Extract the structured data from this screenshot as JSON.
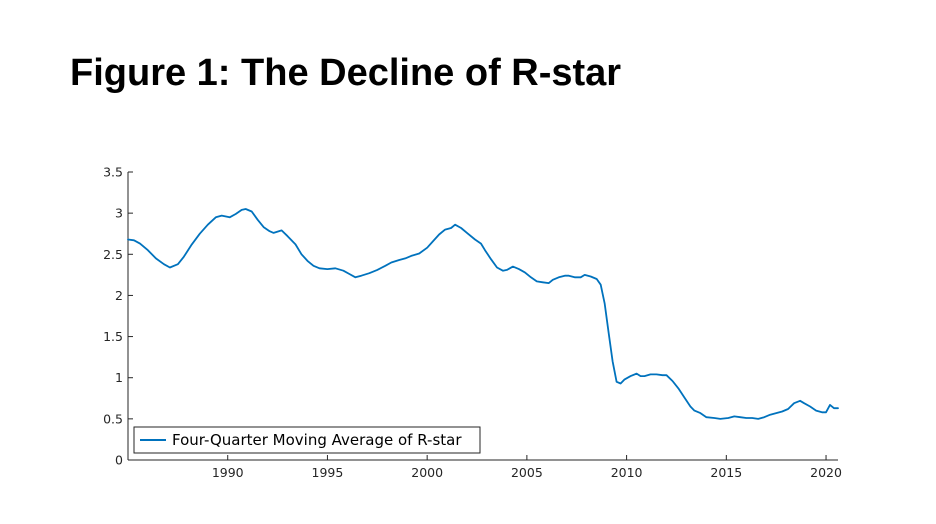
{
  "slide": {
    "title": "Figure 1: The Decline of R-star"
  },
  "colors": {
    "series": "#0072BD",
    "axis": "#262626",
    "background": "#ffffff"
  },
  "chart_data": {
    "type": "line",
    "title": "",
    "xlabel": "",
    "ylabel": "",
    "xlim": [
      1985,
      2020.6
    ],
    "ylim": [
      0,
      3.5
    ],
    "grid": false,
    "legend_position": "bottom-left",
    "x_ticks": [
      1990,
      1995,
      2000,
      2005,
      2010,
      2015,
      2020
    ],
    "x_tick_labels": [
      "1990",
      "1995",
      "2000",
      "2005",
      "2010",
      "2015",
      "2020"
    ],
    "y_ticks": [
      0,
      0.5,
      1,
      1.5,
      2,
      2.5,
      3,
      3.5
    ],
    "y_tick_labels": [
      "0",
      "0.5",
      "1",
      "1.5",
      "2",
      "2.5",
      "3",
      "3.5"
    ],
    "series": [
      {
        "name": "Four-Quarter Moving Average of R-star",
        "color": "#0072BD",
        "x": [
          1985.0,
          1985.3,
          1985.6,
          1986.0,
          1986.4,
          1986.8,
          1987.1,
          1987.5,
          1987.8,
          1988.2,
          1988.6,
          1989.0,
          1989.4,
          1989.7,
          1990.1,
          1990.4,
          1990.7,
          1990.9,
          1991.2,
          1991.5,
          1991.8,
          1992.1,
          1992.3,
          1992.7,
          1993.0,
          1993.4,
          1993.7,
          1994.0,
          1994.3,
          1994.6,
          1995.0,
          1995.4,
          1995.8,
          1996.1,
          1996.4,
          1996.7,
          1997.1,
          1997.5,
          1997.9,
          1998.2,
          1998.6,
          1998.9,
          1999.2,
          1999.6,
          2000.0,
          2000.3,
          2000.6,
          2000.9,
          2001.2,
          2001.4,
          2001.7,
          2002.0,
          2002.4,
          2002.7,
          2002.9,
          2003.2,
          2003.5,
          2003.8,
          2004.0,
          2004.3,
          2004.6,
          2004.9,
          2005.2,
          2005.5,
          2005.8,
          2006.1,
          2006.3,
          2006.6,
          2006.9,
          2007.1,
          2007.4,
          2007.7,
          2007.9,
          2008.2,
          2008.5,
          2008.7,
          2008.9,
          2009.1,
          2009.3,
          2009.5,
          2009.7,
          2009.9,
          2010.2,
          2010.5,
          2010.7,
          2010.9,
          2011.2,
          2011.5,
          2011.8,
          2012.0,
          2012.3,
          2012.6,
          2012.9,
          2013.2,
          2013.4,
          2013.7,
          2014.0,
          2014.4,
          2014.7,
          2015.1,
          2015.4,
          2015.7,
          2016.0,
          2016.3,
          2016.6,
          2016.9,
          2017.2,
          2017.5,
          2017.8,
          2018.1,
          2018.4,
          2018.7,
          2018.9,
          2019.2,
          2019.5,
          2019.8,
          2020.0,
          2020.2,
          2020.4,
          2020.6
        ],
        "y": [
          2.68,
          2.67,
          2.63,
          2.55,
          2.45,
          2.38,
          2.34,
          2.38,
          2.47,
          2.62,
          2.75,
          2.86,
          2.95,
          2.97,
          2.95,
          2.99,
          3.04,
          3.05,
          3.02,
          2.92,
          2.83,
          2.78,
          2.76,
          2.79,
          2.72,
          2.62,
          2.5,
          2.42,
          2.36,
          2.33,
          2.32,
          2.33,
          2.3,
          2.26,
          2.22,
          2.24,
          2.27,
          2.31,
          2.36,
          2.4,
          2.43,
          2.45,
          2.48,
          2.51,
          2.58,
          2.66,
          2.74,
          2.8,
          2.82,
          2.86,
          2.82,
          2.76,
          2.68,
          2.63,
          2.55,
          2.44,
          2.34,
          2.3,
          2.31,
          2.35,
          2.32,
          2.28,
          2.22,
          2.17,
          2.16,
          2.15,
          2.19,
          2.22,
          2.24,
          2.24,
          2.22,
          2.22,
          2.25,
          2.23,
          2.2,
          2.13,
          1.9,
          1.55,
          1.2,
          0.95,
          0.93,
          0.98,
          1.02,
          1.05,
          1.02,
          1.02,
          1.04,
          1.04,
          1.03,
          1.03,
          0.96,
          0.87,
          0.76,
          0.65,
          0.6,
          0.57,
          0.52,
          0.51,
          0.5,
          0.51,
          0.53,
          0.52,
          0.51,
          0.51,
          0.5,
          0.52,
          0.55,
          0.57,
          0.59,
          0.62,
          0.69,
          0.72,
          0.69,
          0.65,
          0.6,
          0.58,
          0.58,
          0.67,
          0.63,
          0.63
        ]
      }
    ]
  }
}
